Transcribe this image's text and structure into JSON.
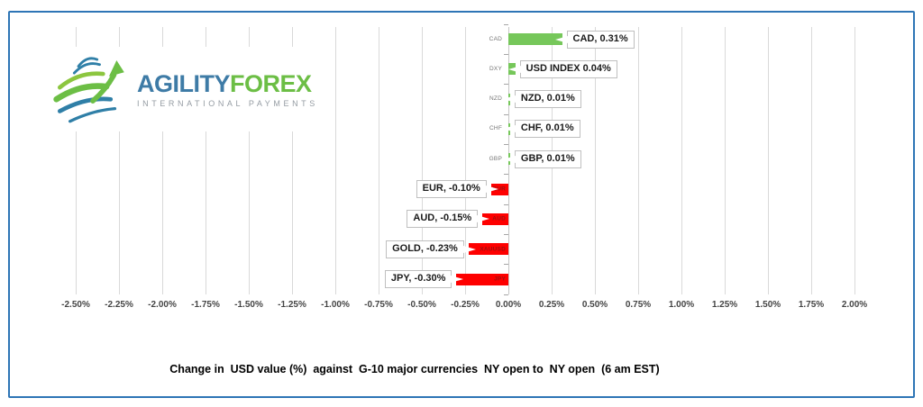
{
  "frame": {
    "border_color": "#2E75B6"
  },
  "logo": {
    "word1": "AGILITY",
    "word2": "FOREX",
    "tagline": "INTERNATIONAL PAYMENTS"
  },
  "chart_data": {
    "type": "bar",
    "orientation": "horizontal",
    "title": "Change in  USD value (%)  against  G-10 major currencies  NY open to  NY open  (6 am EST)",
    "categories": [
      "CAD",
      "DXY",
      "NZD",
      "CHF",
      "GBP",
      "EUR",
      "AUD",
      "XAUUSD",
      "JPY"
    ],
    "values": [
      0.31,
      0.04,
      0.01,
      0.01,
      0.01,
      -0.1,
      -0.15,
      -0.23,
      -0.3
    ],
    "data_labels": [
      "CAD, 0.31%",
      "USD INDEX 0.04%",
      "NZD, 0.01%",
      "CHF, 0.01%",
      "GBP, 0.01%",
      "EUR, -0.10%",
      "AUD, -0.15%",
      "GOLD, -0.23%",
      "JPY, -0.30%"
    ],
    "axis_side_labels": [
      "CAD",
      "DXY",
      "NZD",
      "CHF",
      "GBP",
      "",
      "",
      "",
      ""
    ],
    "inside_bar_labels": [
      "",
      "",
      "",
      "",
      "",
      "EUR",
      "AUD",
      "XAUUSD",
      "JPY"
    ],
    "x_ticks": [
      "-2.50%",
      "-2.25%",
      "-2.00%",
      "-1.75%",
      "-1.50%",
      "-1.25%",
      "-1.00%",
      "-0.75%",
      "-0.50%",
      "-0.25%",
      "0.00%",
      "0.25%",
      "0.50%",
      "0.75%",
      "1.00%",
      "1.25%",
      "1.50%",
      "1.75%",
      "2.00%"
    ],
    "xlim": [
      -2.5,
      2.0
    ],
    "tick_step": 0.25,
    "grid": true,
    "legend": "none",
    "colors": {
      "positive": "#76C75A",
      "negative": "#FE0000",
      "gridline": "#D9D9D9",
      "inside_label": "#9C1111",
      "axis_label": "#757575"
    }
  }
}
